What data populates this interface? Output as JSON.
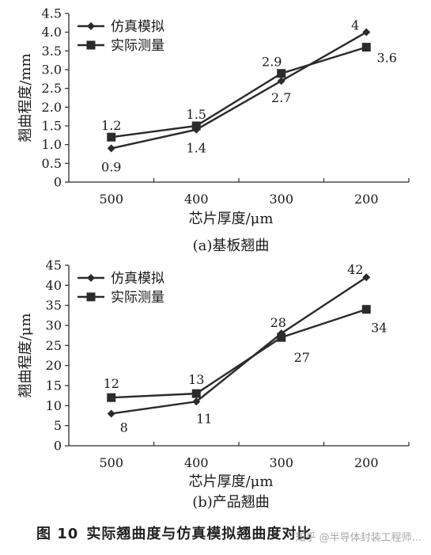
{
  "chart_data": [
    {
      "type": "line",
      "caption": "(a)基板翘曲",
      "xlabel": "芯片厚度/μm",
      "ylabel": "翘曲程度/mm",
      "categories": [
        "500",
        "400",
        "300",
        "200"
      ],
      "ylim": [
        0,
        4.5
      ],
      "yticks": [
        "0",
        "0.5",
        "1.0",
        "1.5",
        "2.0",
        "2.5",
        "3.0",
        "3.5",
        "4.0",
        "4.5"
      ],
      "legend_position": "top-left",
      "series": [
        {
          "name": "仿真模拟",
          "marker": "diamond",
          "values": [
            0.9,
            1.4,
            2.7,
            4.0
          ],
          "labels": [
            "0.9",
            "1.4",
            "2.7",
            "4"
          ]
        },
        {
          "name": "实际测量",
          "marker": "square",
          "values": [
            1.2,
            1.5,
            2.9,
            3.6
          ],
          "labels": [
            "1.2",
            "1.5",
            "2.9",
            "3.6"
          ]
        }
      ]
    },
    {
      "type": "line",
      "caption": "(b)产品翘曲",
      "xlabel": "芯片厚度/μm",
      "ylabel": "翘曲程度/μm",
      "categories": [
        "500",
        "400",
        "300",
        "200"
      ],
      "ylim": [
        0,
        45
      ],
      "yticks": [
        "0",
        "5",
        "10",
        "15",
        "20",
        "25",
        "30",
        "35",
        "40",
        "45"
      ],
      "legend_position": "top-left",
      "series": [
        {
          "name": "仿真模拟",
          "marker": "diamond",
          "values": [
            8,
            11,
            28,
            42
          ],
          "labels": [
            "8",
            "11",
            "28",
            "42"
          ]
        },
        {
          "name": "实际测量",
          "marker": "square",
          "values": [
            12,
            13,
            27,
            34
          ],
          "labels": [
            "12",
            "13",
            "27",
            "34"
          ]
        }
      ]
    }
  ],
  "figure_caption": {
    "number": "图 10",
    "text": "实际翘曲度与仿真模拟翘曲度对比"
  },
  "watermark": "知乎 @半导体封装工程师...",
  "colors": {
    "line": "#2b2b2b",
    "text": "#1a1a1a"
  }
}
